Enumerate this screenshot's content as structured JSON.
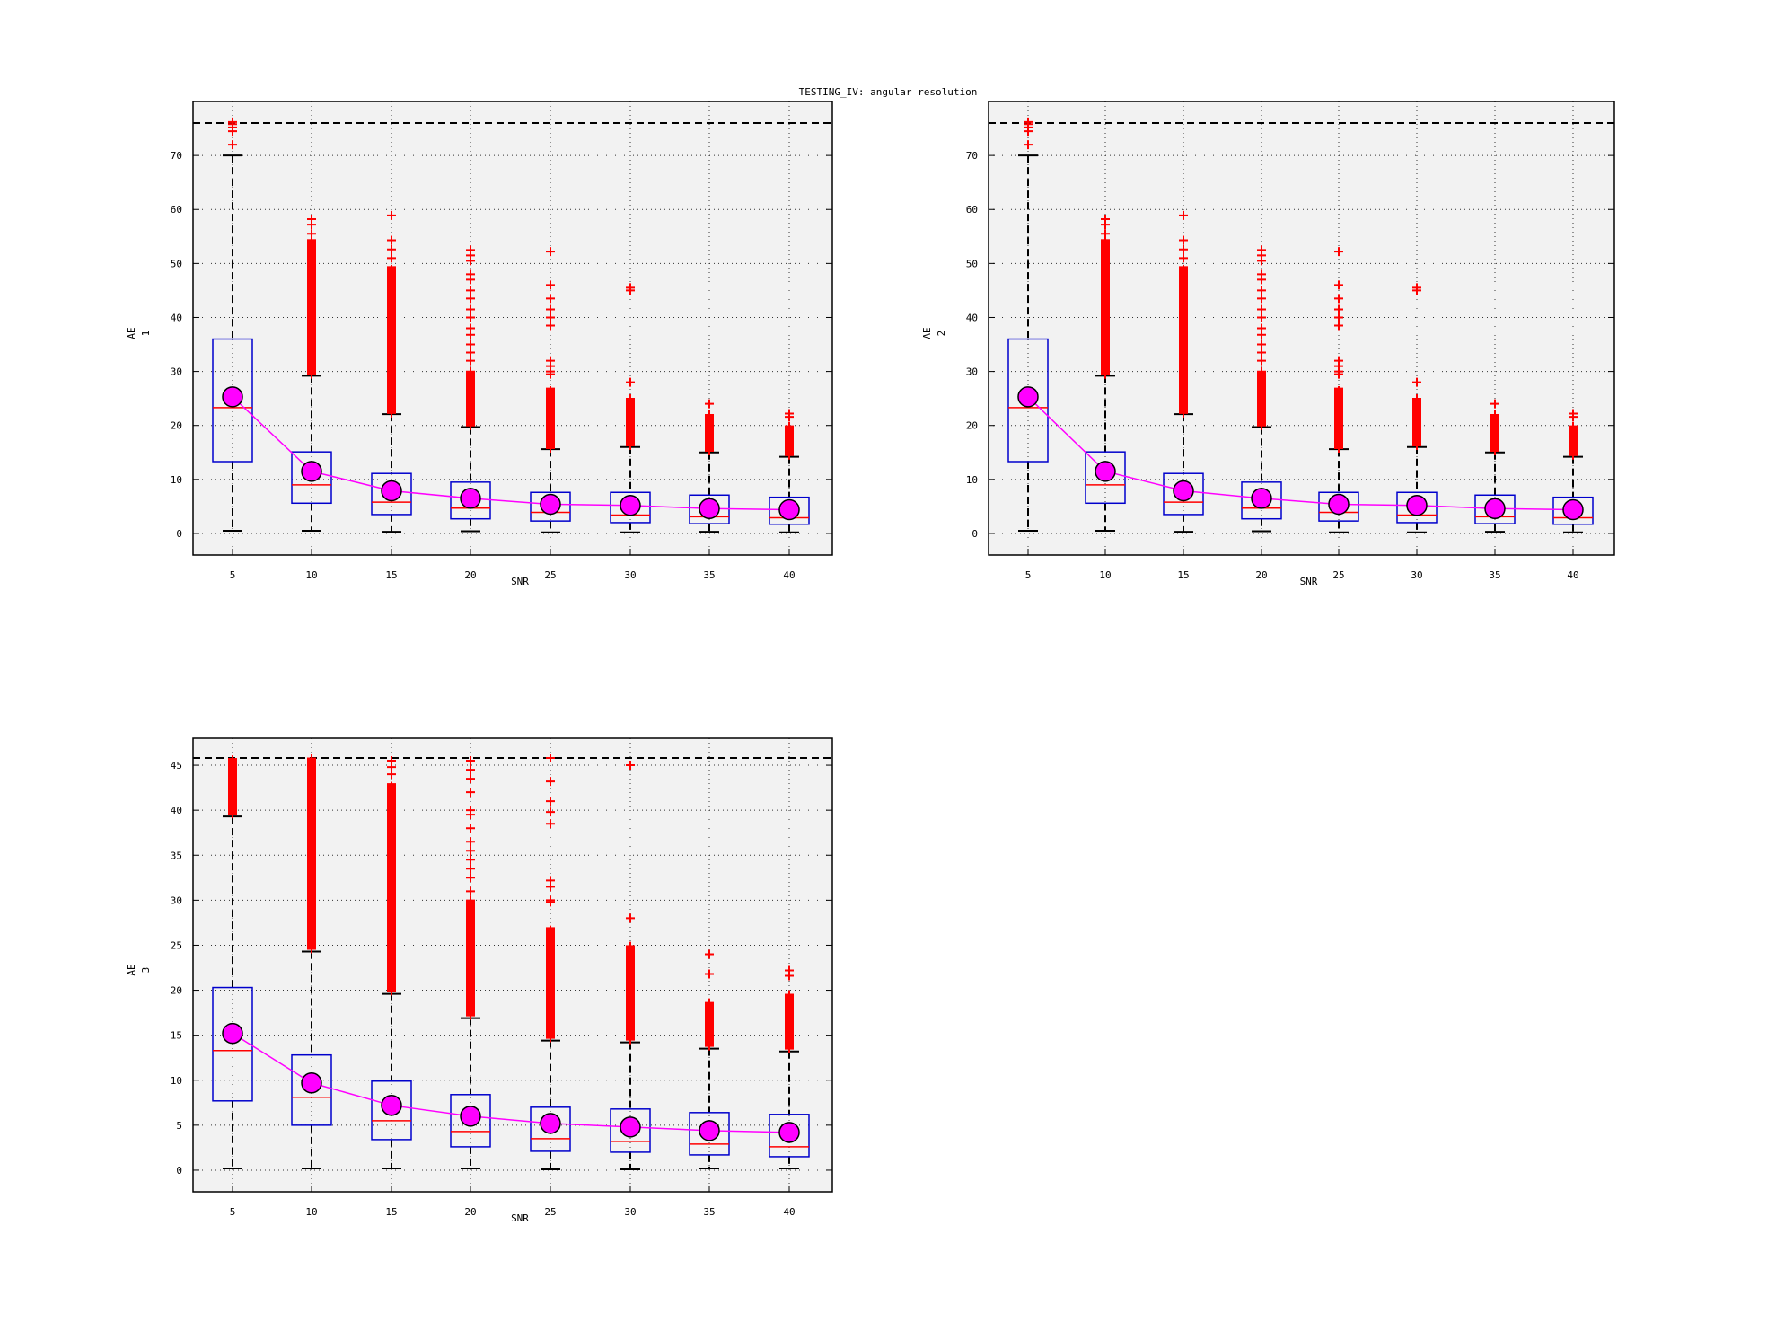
{
  "suptitle": "TESTING_IV: angular resolution",
  "colors": {
    "plot_bg": "#f2f2f2",
    "box": "#0000cc",
    "median": "#ff0000",
    "outlier": "#ff0000",
    "whisker": "#000000",
    "mean_fill": "#ff00ff",
    "mean_line": "#ff00ff",
    "ref_line": "#000000"
  },
  "chart_data": [
    {
      "type": "box",
      "xlabel": "SNR",
      "ylabel_main": "AE",
      "ylabel_sub": "1",
      "ylim": [
        -4,
        80
      ],
      "yticks": [
        0,
        10,
        20,
        30,
        40,
        50,
        60,
        70
      ],
      "reference_line": 76,
      "grid": true,
      "categories": [
        "5",
        "10",
        "15",
        "20",
        "25",
        "30",
        "35",
        "40"
      ],
      "boxes": [
        {
          "q1": 13.3,
          "median": 23.3,
          "q3": 36.0,
          "whisker_low": 0.5,
          "whisker_high": 70.0,
          "mean": 25.3,
          "outliers": [
            72,
            74.5,
            75.2,
            75.8,
            76.2
          ]
        },
        {
          "q1": 5.6,
          "median": 9.0,
          "q3": 15.1,
          "whisker_low": 0.5,
          "whisker_high": 29.2,
          "mean": 11.5,
          "outliers_band": [
            29.5,
            54.5
          ],
          "outliers": [
            55.5,
            57.2,
            58.2
          ]
        },
        {
          "q1": 3.5,
          "median": 5.8,
          "q3": 11.1,
          "whisker_low": 0.3,
          "whisker_high": 22.1,
          "mean": 7.9,
          "outliers_band": [
            22.3,
            49.5
          ],
          "outliers": [
            51.0,
            52.6,
            54.3,
            58.9
          ]
        },
        {
          "q1": 2.7,
          "median": 4.7,
          "q3": 9.5,
          "whisker_low": 0.4,
          "whisker_high": 19.7,
          "mean": 6.5,
          "outliers_band": [
            20.0,
            30.0
          ],
          "outliers": [
            32.0,
            33.5,
            35.0,
            36.8,
            38.0,
            40.0,
            41.5,
            43.5,
            45.0,
            47.0,
            48.0,
            50.5,
            51.5,
            52.5
          ]
        },
        {
          "q1": 2.3,
          "median": 3.9,
          "q3": 7.6,
          "whisker_low": 0.2,
          "whisker_high": 15.6,
          "mean": 5.4,
          "outliers_band": [
            15.8,
            27.0
          ],
          "outliers": [
            29.5,
            30.0,
            31.0,
            32.0,
            38.5,
            40.0,
            41.5,
            43.5,
            46.0,
            52.2
          ]
        },
        {
          "q1": 2.0,
          "median": 3.4,
          "q3": 7.6,
          "whisker_low": 0.2,
          "whisker_high": 16.0,
          "mean": 5.2,
          "outliers_band": [
            16.3,
            25.0
          ],
          "outliers": [
            28.0,
            45.0,
            45.5
          ]
        },
        {
          "q1": 1.8,
          "median": 3.1,
          "q3": 7.1,
          "whisker_low": 0.3,
          "whisker_high": 15.0,
          "mean": 4.6,
          "outliers_band": [
            15.3,
            22.0
          ],
          "outliers": [
            24.0
          ]
        },
        {
          "q1": 1.7,
          "median": 2.9,
          "q3": 6.7,
          "whisker_low": 0.2,
          "whisker_high": 14.2,
          "mean": 4.4,
          "outliers_band": [
            14.5,
            20.0
          ],
          "outliers": [
            21.6,
            22.2
          ]
        }
      ]
    },
    {
      "type": "box",
      "xlabel": "SNR",
      "ylabel_main": "AE",
      "ylabel_sub": "2",
      "ylim": [
        -4,
        80
      ],
      "yticks": [
        0,
        10,
        20,
        30,
        40,
        50,
        60,
        70
      ],
      "reference_line": 76,
      "grid": true,
      "categories": [
        "5",
        "10",
        "15",
        "20",
        "25",
        "30",
        "35",
        "40"
      ],
      "boxes": [
        {
          "q1": 13.3,
          "median": 23.3,
          "q3": 36.0,
          "whisker_low": 0.5,
          "whisker_high": 70.0,
          "mean": 25.3,
          "outliers": [
            72,
            74.5,
            75.2,
            75.8,
            76.2
          ]
        },
        {
          "q1": 5.6,
          "median": 9.0,
          "q3": 15.1,
          "whisker_low": 0.5,
          "whisker_high": 29.2,
          "mean": 11.5,
          "outliers_band": [
            29.5,
            54.5
          ],
          "outliers": [
            55.5,
            57.2,
            58.2
          ]
        },
        {
          "q1": 3.5,
          "median": 5.8,
          "q3": 11.1,
          "whisker_low": 0.3,
          "whisker_high": 22.1,
          "mean": 7.9,
          "outliers_band": [
            22.3,
            49.5
          ],
          "outliers": [
            51.0,
            52.6,
            54.3,
            58.9
          ]
        },
        {
          "q1": 2.7,
          "median": 4.7,
          "q3": 9.5,
          "whisker_low": 0.4,
          "whisker_high": 19.7,
          "mean": 6.5,
          "outliers_band": [
            20.0,
            30.0
          ],
          "outliers": [
            32.0,
            33.5,
            35.0,
            36.8,
            38.0,
            40.0,
            41.5,
            43.5,
            45.0,
            47.0,
            48.0,
            50.5,
            51.5,
            52.5
          ]
        },
        {
          "q1": 2.3,
          "median": 3.9,
          "q3": 7.6,
          "whisker_low": 0.2,
          "whisker_high": 15.6,
          "mean": 5.4,
          "outliers_band": [
            15.8,
            27.0
          ],
          "outliers": [
            29.5,
            30.0,
            31.0,
            32.0,
            38.5,
            40.0,
            41.5,
            43.5,
            46.0,
            52.2
          ]
        },
        {
          "q1": 2.0,
          "median": 3.4,
          "q3": 7.6,
          "whisker_low": 0.2,
          "whisker_high": 16.0,
          "mean": 5.2,
          "outliers_band": [
            16.3,
            25.0
          ],
          "outliers": [
            28.0,
            45.0,
            45.5
          ]
        },
        {
          "q1": 1.8,
          "median": 3.1,
          "q3": 7.1,
          "whisker_low": 0.3,
          "whisker_high": 15.0,
          "mean": 4.6,
          "outliers_band": [
            15.3,
            22.0
          ],
          "outliers": [
            24.0
          ]
        },
        {
          "q1": 1.7,
          "median": 2.9,
          "q3": 6.7,
          "whisker_low": 0.2,
          "whisker_high": 14.2,
          "mean": 4.4,
          "outliers_band": [
            14.5,
            20.0
          ],
          "outliers": [
            21.6,
            22.2
          ]
        }
      ]
    },
    {
      "type": "box",
      "xlabel": "SNR",
      "ylabel_main": "AE",
      "ylabel_sub": "3",
      "ylim": [
        -2.4,
        48
      ],
      "yticks": [
        0,
        5,
        10,
        15,
        20,
        25,
        30,
        35,
        40,
        45
      ],
      "reference_line": 45.8,
      "grid": true,
      "categories": [
        "5",
        "10",
        "15",
        "20",
        "25",
        "30",
        "35",
        "40"
      ],
      "boxes": [
        {
          "q1": 7.7,
          "median": 13.3,
          "q3": 20.3,
          "whisker_low": 0.2,
          "whisker_high": 39.3,
          "mean": 15.2,
          "outliers_band": [
            39.6,
            45.8
          ],
          "outliers": []
        },
        {
          "q1": 5.0,
          "median": 8.1,
          "q3": 12.8,
          "whisker_low": 0.2,
          "whisker_high": 24.3,
          "mean": 9.7,
          "outliers_band": [
            24.6,
            45.8
          ],
          "outliers": []
        },
        {
          "q1": 3.4,
          "median": 5.5,
          "q3": 9.9,
          "whisker_low": 0.2,
          "whisker_high": 19.6,
          "mean": 7.2,
          "outliers_band": [
            19.9,
            43.0
          ],
          "outliers": [
            44.0,
            44.8,
            45.5
          ]
        },
        {
          "q1": 2.6,
          "median": 4.3,
          "q3": 8.4,
          "whisker_low": 0.2,
          "whisker_high": 16.9,
          "mean": 6.0,
          "outliers_band": [
            17.2,
            30.0
          ],
          "outliers": [
            31.0,
            32.5,
            33.5,
            34.5,
            35.5,
            36.5,
            38.0,
            39.5,
            40.0,
            42.0,
            43.5,
            44.5,
            45.5
          ]
        },
        {
          "q1": 2.1,
          "median": 3.5,
          "q3": 7.0,
          "whisker_low": 0.1,
          "whisker_high": 14.4,
          "mean": 5.2,
          "outliers_band": [
            14.7,
            27.0
          ],
          "outliers": [
            29.8,
            30.0,
            31.5,
            32.2,
            38.5,
            39.8,
            41.0,
            43.2,
            45.8
          ]
        },
        {
          "q1": 2.0,
          "median": 3.2,
          "q3": 6.8,
          "whisker_low": 0.1,
          "whisker_high": 14.2,
          "mean": 4.8,
          "outliers_band": [
            14.5,
            25.0
          ],
          "outliers": [
            28.0,
            45.0
          ]
        },
        {
          "q1": 1.7,
          "median": 2.9,
          "q3": 6.4,
          "whisker_low": 0.2,
          "whisker_high": 13.5,
          "mean": 4.4,
          "outliers_band": [
            13.8,
            18.6
          ],
          "outliers": [
            21.8,
            24.0
          ]
        },
        {
          "q1": 1.5,
          "median": 2.6,
          "q3": 6.2,
          "whisker_low": 0.2,
          "whisker_high": 13.2,
          "mean": 4.2,
          "outliers_band": [
            13.5,
            19.6
          ],
          "outliers": [
            21.6,
            22.2
          ]
        }
      ]
    }
  ]
}
